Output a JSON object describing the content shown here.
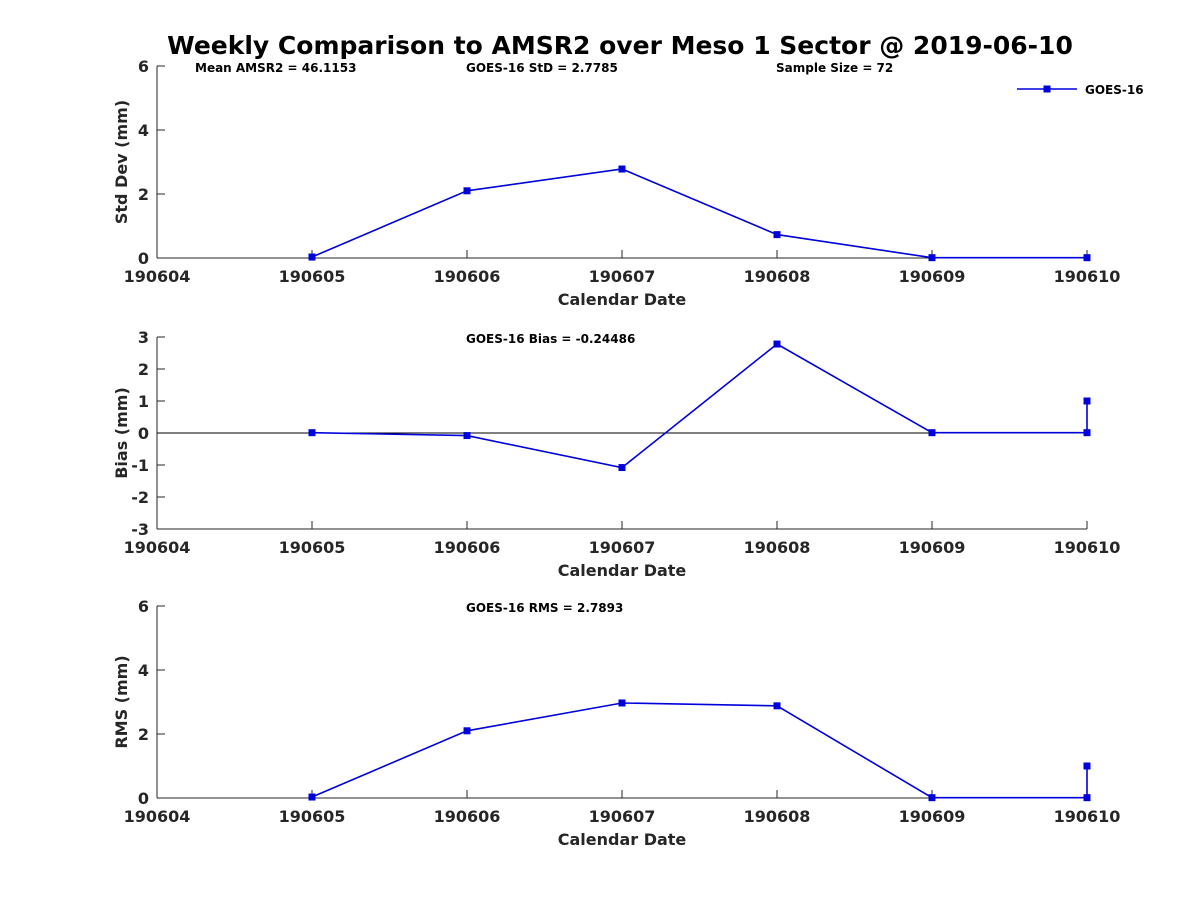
{
  "title": "Weekly Comparison to AMSR2 over Meso 1 Sector @ 2019-06-10",
  "series_color": "#0000dd",
  "chart_data": [
    {
      "type": "line",
      "xlabel": "Calendar Date",
      "ylabel": "Std Dev (mm)",
      "xlim": [
        "190604",
        "190610"
      ],
      "ylim": [
        0,
        6
      ],
      "yticks": [
        0,
        2,
        4,
        6
      ],
      "x_ticks": [
        "190604",
        "190605",
        "190606",
        "190607",
        "190608",
        "190609",
        "190610"
      ],
      "grid": false,
      "zero_line": false,
      "legend": {
        "position": "top-right",
        "entries": [
          "GOES-16"
        ]
      },
      "annotations": [
        "Mean AMSR2 = 46.1153",
        "GOES-16 StD = 2.7785",
        "Sample Size = 72"
      ],
      "series": [
        {
          "name": "GOES-16",
          "x": [
            "190605",
            "190606",
            "190607",
            "190608",
            "190609",
            "190610"
          ],
          "y": [
            0.03,
            2.1,
            2.78,
            0.73,
            0.01,
            0.01
          ]
        }
      ]
    },
    {
      "type": "line",
      "xlabel": "Calendar Date",
      "ylabel": "Bias (mm)",
      "xlim": [
        "190604",
        "190610"
      ],
      "ylim": [
        -3,
        3
      ],
      "yticks": [
        -3,
        -2,
        -1,
        0,
        1,
        2,
        3
      ],
      "x_ticks": [
        "190604",
        "190605",
        "190606",
        "190607",
        "190608",
        "190609",
        "190610"
      ],
      "grid": false,
      "zero_line": true,
      "annotations": [
        "GOES-16 Bias  = -0.24486"
      ],
      "series": [
        {
          "name": "GOES-16",
          "x": [
            "190605",
            "190606",
            "190607",
            "190608",
            "190609",
            "190610",
            "190610"
          ],
          "y": [
            0.01,
            -0.08,
            -1.08,
            2.78,
            0.01,
            0.01,
            1.0
          ]
        }
      ]
    },
    {
      "type": "line",
      "xlabel": "Calendar Date",
      "ylabel": "RMS (mm)",
      "xlim": [
        "190604",
        "190610"
      ],
      "ylim": [
        0,
        6
      ],
      "yticks": [
        0,
        2,
        4,
        6
      ],
      "x_ticks": [
        "190604",
        "190605",
        "190606",
        "190607",
        "190608",
        "190609",
        "190610"
      ],
      "grid": false,
      "zero_line": false,
      "annotations": [
        "GOES-16 RMS = 2.7893"
      ],
      "series": [
        {
          "name": "GOES-16",
          "x": [
            "190605",
            "190606",
            "190607",
            "190608",
            "190609",
            "190610",
            "190610"
          ],
          "y": [
            0.03,
            2.1,
            2.97,
            2.88,
            0.01,
            0.01,
            1.0
          ]
        }
      ]
    }
  ]
}
